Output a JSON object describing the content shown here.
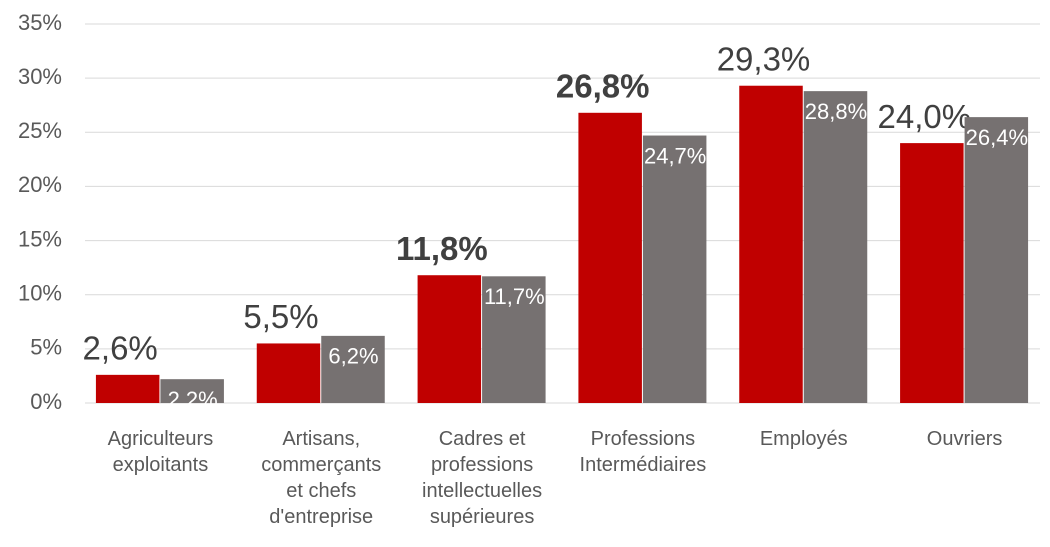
{
  "chart_data": {
    "type": "bar",
    "categories": [
      "Agriculteurs\nexploitants",
      "Artisans,\ncommerçants\net chefs\nd'entreprise",
      "Cadres et\nprofessions\nintellectuelles\nsupérieures",
      "Professions\nIntermédiaires",
      "Employés",
      "Ouvriers"
    ],
    "series": [
      {
        "color": "#c00000",
        "values": [
          2.6,
          5.5,
          11.8,
          26.8,
          29.3,
          24.0
        ],
        "value_labels": [
          "2,6%",
          "5,5%",
          "11,8%",
          "26,8%",
          "29,3%",
          "24,0%"
        ],
        "label_bold": [
          false,
          false,
          true,
          true,
          false,
          false
        ]
      },
      {
        "color": "#767171",
        "values": [
          2.2,
          6.2,
          11.7,
          24.7,
          28.8,
          26.4
        ],
        "value_labels": [
          "2,2%",
          "6,2%",
          "11,7%",
          "24,7%",
          "28,8%",
          "26,4%"
        ]
      }
    ],
    "ylim": [
      0,
      35
    ],
    "yticks": [
      {
        "value": 0,
        "label": "0%"
      },
      {
        "value": 5,
        "label": "5%"
      },
      {
        "value": 10,
        "label": "10%"
      },
      {
        "value": 15,
        "label": "15%"
      },
      {
        "value": 20,
        "label": "20%"
      },
      {
        "value": 25,
        "label": "25%"
      },
      {
        "value": 30,
        "label": "30%"
      },
      {
        "value": 35,
        "label": "35%"
      }
    ],
    "grid": true
  }
}
